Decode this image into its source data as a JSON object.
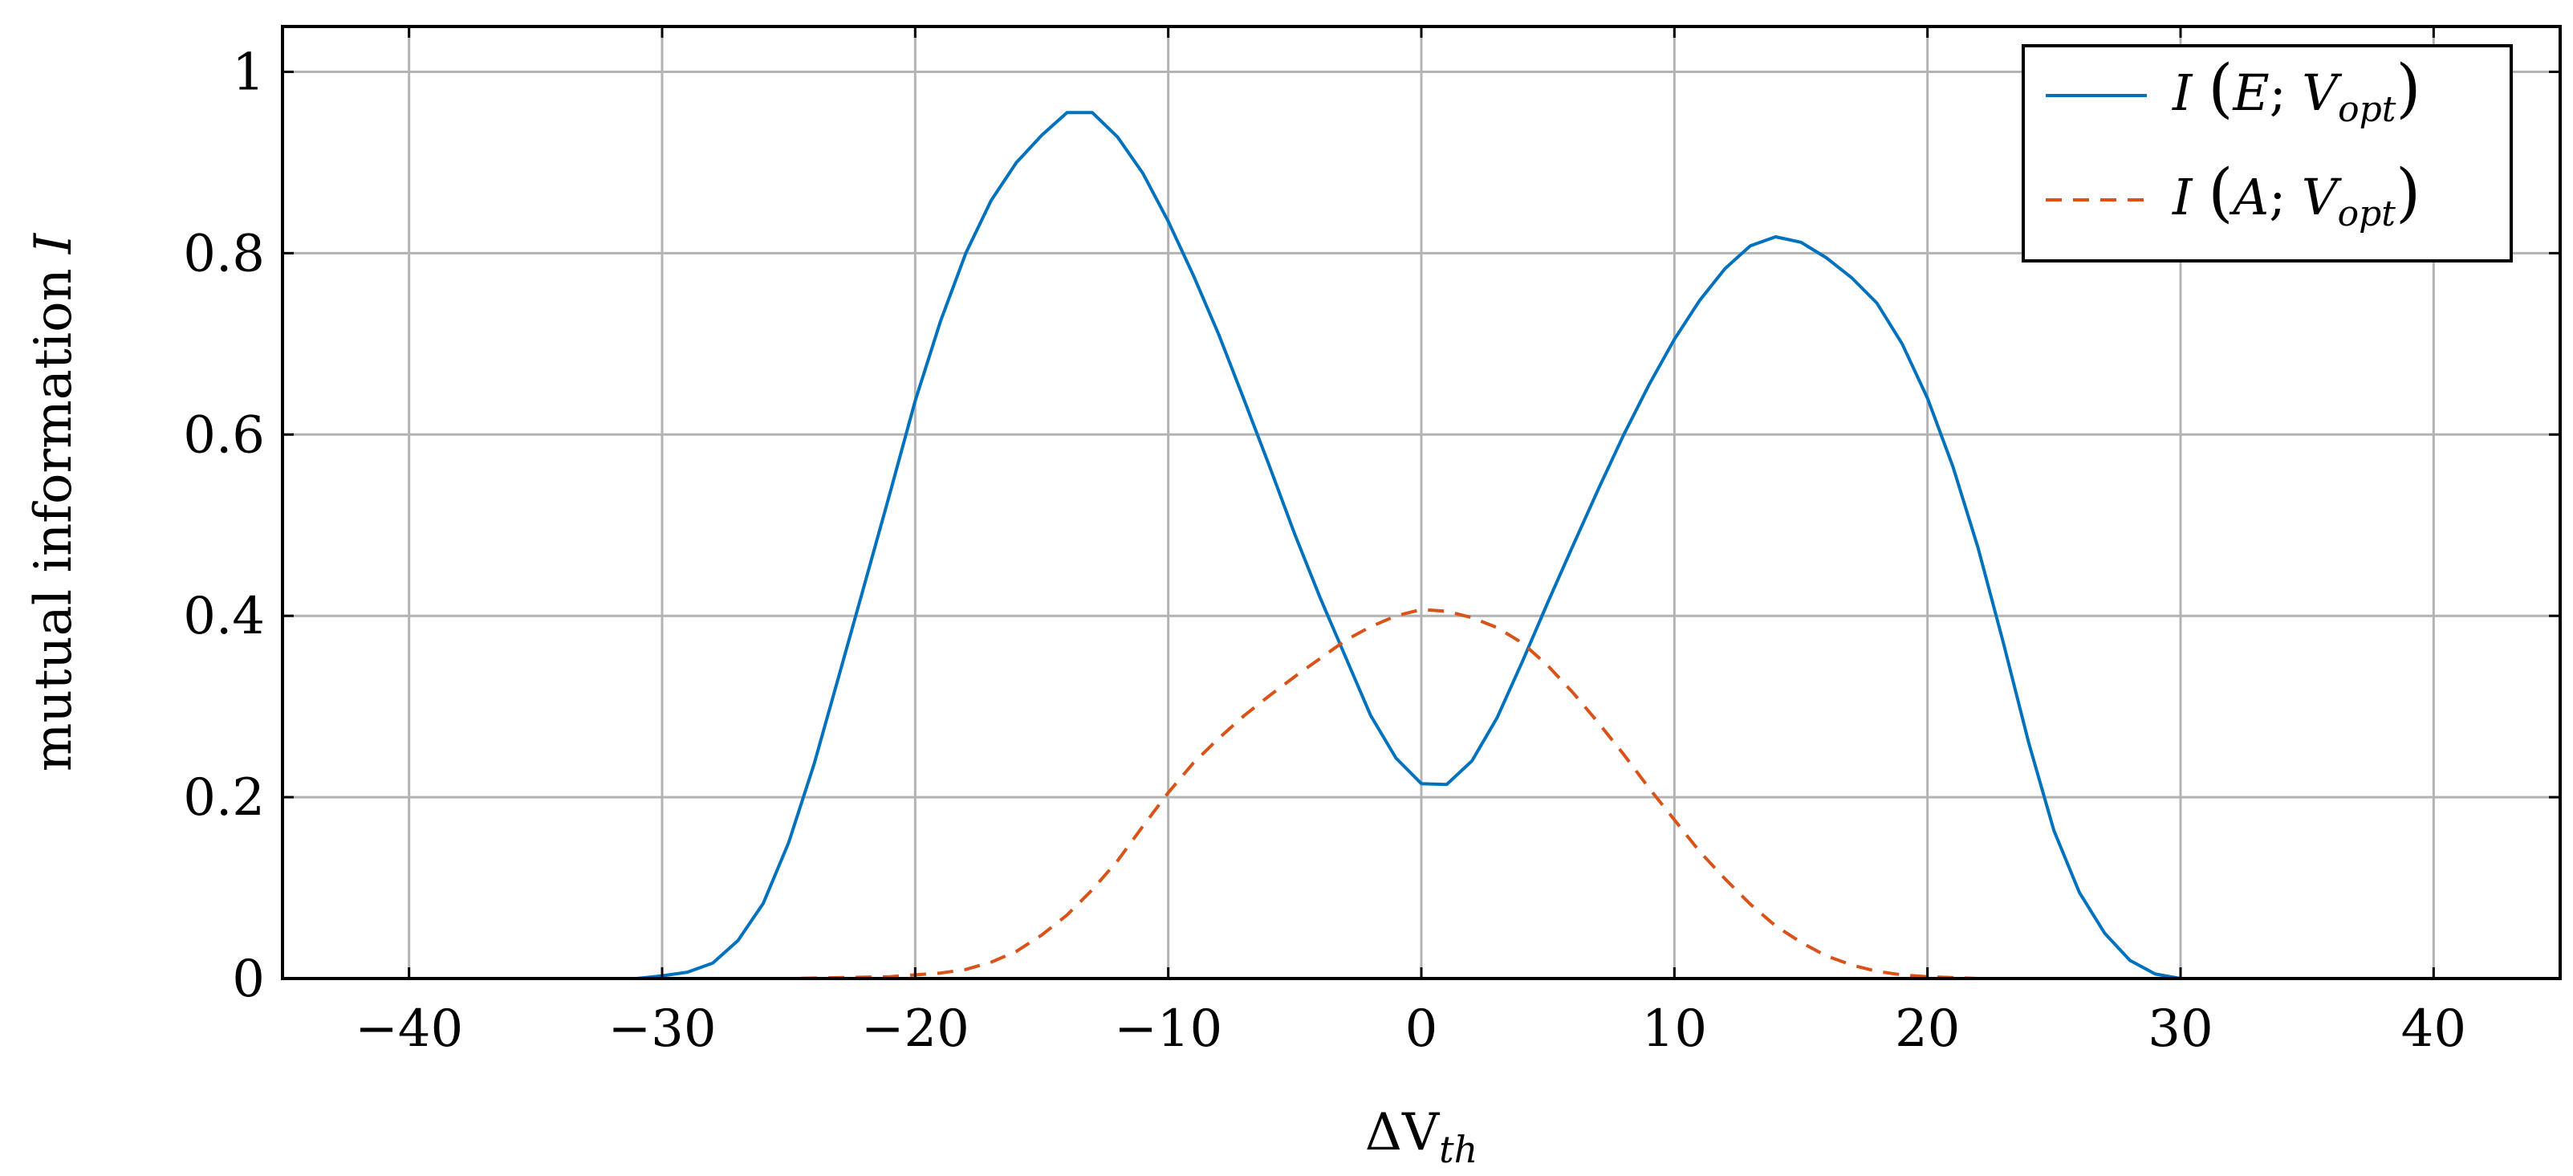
{
  "chart_data": {
    "type": "line",
    "title": "",
    "xlabel": "ΔV",
    "xlabel_sub": "th",
    "ylabel": "mutual information",
    "ylabel_var": "I",
    "xlim": [
      -45,
      45
    ],
    "ylim": [
      0,
      1.05
    ],
    "xticks": [
      -40,
      -30,
      -20,
      -10,
      0,
      10,
      20,
      30,
      40
    ],
    "xtick_labels": [
      "−40",
      "−30",
      "−20",
      "−10",
      "0",
      "10",
      "20",
      "30",
      "40"
    ],
    "yticks": [
      0,
      0.2,
      0.4,
      0.6,
      0.8,
      1
    ],
    "ytick_labels": [
      "0",
      "0.2",
      "0.4",
      "0.6",
      "0.8",
      "1"
    ],
    "grid": true,
    "legend_position": "top-right",
    "series": [
      {
        "name": "I (E; V_opt)",
        "legend": {
          "pre": "I ",
          "var": "E",
          "sub": "opt"
        },
        "color": "#0072bd",
        "dash": "solid",
        "x": [
          -45,
          -40,
          -35,
          -31,
          -30,
          -29,
          -28,
          -27,
          -26,
          -25,
          -24,
          -23,
          -22,
          -21,
          -20,
          -19,
          -18,
          -17,
          -16,
          -15,
          -14,
          -13,
          -12,
          -11,
          -10,
          -9,
          -8,
          -7,
          -6,
          -5,
          -4,
          -3,
          -2,
          -1,
          0,
          1,
          2,
          3,
          4,
          5,
          6,
          7,
          8,
          9,
          10,
          11,
          12,
          13,
          14,
          15,
          16,
          17,
          18,
          19,
          20,
          21,
          22,
          23,
          24,
          25,
          26,
          27,
          28,
          29,
          30,
          35,
          40,
          45
        ],
        "y": [
          0,
          0,
          0,
          0,
          0.003,
          0.007,
          0.017,
          0.042,
          0.083,
          0.15,
          0.236,
          0.335,
          0.435,
          0.535,
          0.637,
          0.725,
          0.8,
          0.858,
          0.9,
          0.93,
          0.955,
          0.955,
          0.928,
          0.888,
          0.835,
          0.775,
          0.71,
          0.638,
          0.565,
          0.49,
          0.42,
          0.355,
          0.29,
          0.243,
          0.215,
          0.214,
          0.24,
          0.288,
          0.35,
          0.415,
          0.478,
          0.54,
          0.6,
          0.655,
          0.705,
          0.748,
          0.783,
          0.808,
          0.818,
          0.812,
          0.795,
          0.773,
          0.745,
          0.7,
          0.64,
          0.565,
          0.475,
          0.37,
          0.26,
          0.163,
          0.095,
          0.05,
          0.02,
          0.005,
          0,
          0,
          0,
          0
        ]
      },
      {
        "name": "I (A; V_opt)",
        "legend": {
          "pre": "I ",
          "var": "A",
          "sub": "opt"
        },
        "color": "#d95319",
        "dash": "dashed",
        "x": [
          -45,
          -40,
          -35,
          -30,
          -25,
          -21,
          -19,
          -18,
          -17,
          -16,
          -15,
          -14,
          -13,
          -12,
          -11,
          -10,
          -9,
          -8,
          -7,
          -6,
          -5,
          -4,
          -3,
          -2,
          -1,
          0,
          1,
          2,
          3,
          4,
          5,
          6,
          7,
          8,
          9,
          10,
          11,
          12,
          13,
          14,
          15,
          16,
          17,
          18,
          19,
          20,
          22,
          25,
          30,
          35,
          40,
          45
        ],
        "y": [
          0,
          0,
          0,
          0,
          0,
          0.002,
          0.006,
          0.01,
          0.018,
          0.03,
          0.048,
          0.07,
          0.098,
          0.13,
          0.168,
          0.205,
          0.238,
          0.265,
          0.29,
          0.312,
          0.333,
          0.353,
          0.373,
          0.388,
          0.4,
          0.407,
          0.405,
          0.398,
          0.387,
          0.37,
          0.345,
          0.315,
          0.282,
          0.247,
          0.21,
          0.175,
          0.14,
          0.11,
          0.082,
          0.058,
          0.04,
          0.025,
          0.015,
          0.008,
          0.004,
          0.002,
          0,
          0,
          0,
          0,
          0,
          0
        ]
      }
    ]
  }
}
